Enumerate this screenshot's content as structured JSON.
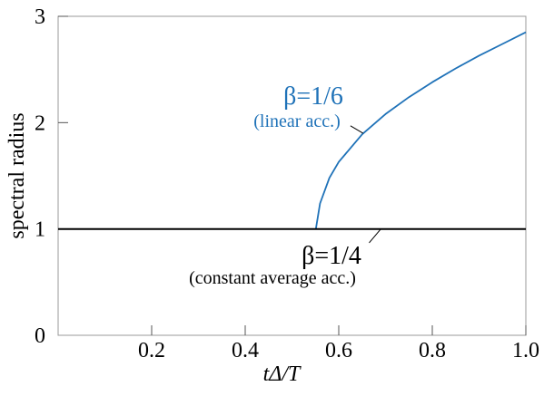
{
  "chart_data": {
    "type": "line",
    "xlabel": "tΔ/T",
    "ylabel": "spectral radius",
    "xlim": [
      0,
      1.0
    ],
    "ylim": [
      0,
      3
    ],
    "x_ticks": [
      0.2,
      0.4,
      0.6,
      0.8,
      1.0
    ],
    "x_tick_labels": [
      "0.2",
      "0.4",
      "0.6",
      "0.8",
      "1.0"
    ],
    "y_ticks": [
      0,
      1,
      2,
      3
    ],
    "y_tick_labels": [
      "0",
      "1",
      "2",
      "3"
    ],
    "grid": false,
    "series": [
      {
        "color": "#1f72b8",
        "x": [
          0.551,
          0.56,
          0.58,
          0.6,
          0.65,
          0.7,
          0.75,
          0.8,
          0.85,
          0.9,
          0.95,
          1.0
        ],
        "y": [
          1.0,
          1.24,
          1.48,
          1.63,
          1.89,
          2.08,
          2.24,
          2.38,
          2.51,
          2.63,
          2.74,
          2.85
        ]
      },
      {
        "color": "#000000",
        "x": [
          0.0,
          1.0
        ],
        "y": [
          1.0,
          1.0
        ]
      }
    ],
    "annotations": [
      {
        "id": "linear",
        "beta_label": "β=1/6",
        "sub_label": "(linear acc.)",
        "color": "#1f72b8",
        "leader_from": [
          0.625,
          1.97
        ],
        "leader_to": [
          0.652,
          1.9
        ]
      },
      {
        "id": "constant",
        "beta_label": "β=1/4",
        "sub_label": "(constant average acc.)",
        "color": "#000000",
        "leader_from": [
          0.665,
          0.87
        ],
        "leader_to": [
          0.69,
          1.0
        ]
      }
    ]
  }
}
